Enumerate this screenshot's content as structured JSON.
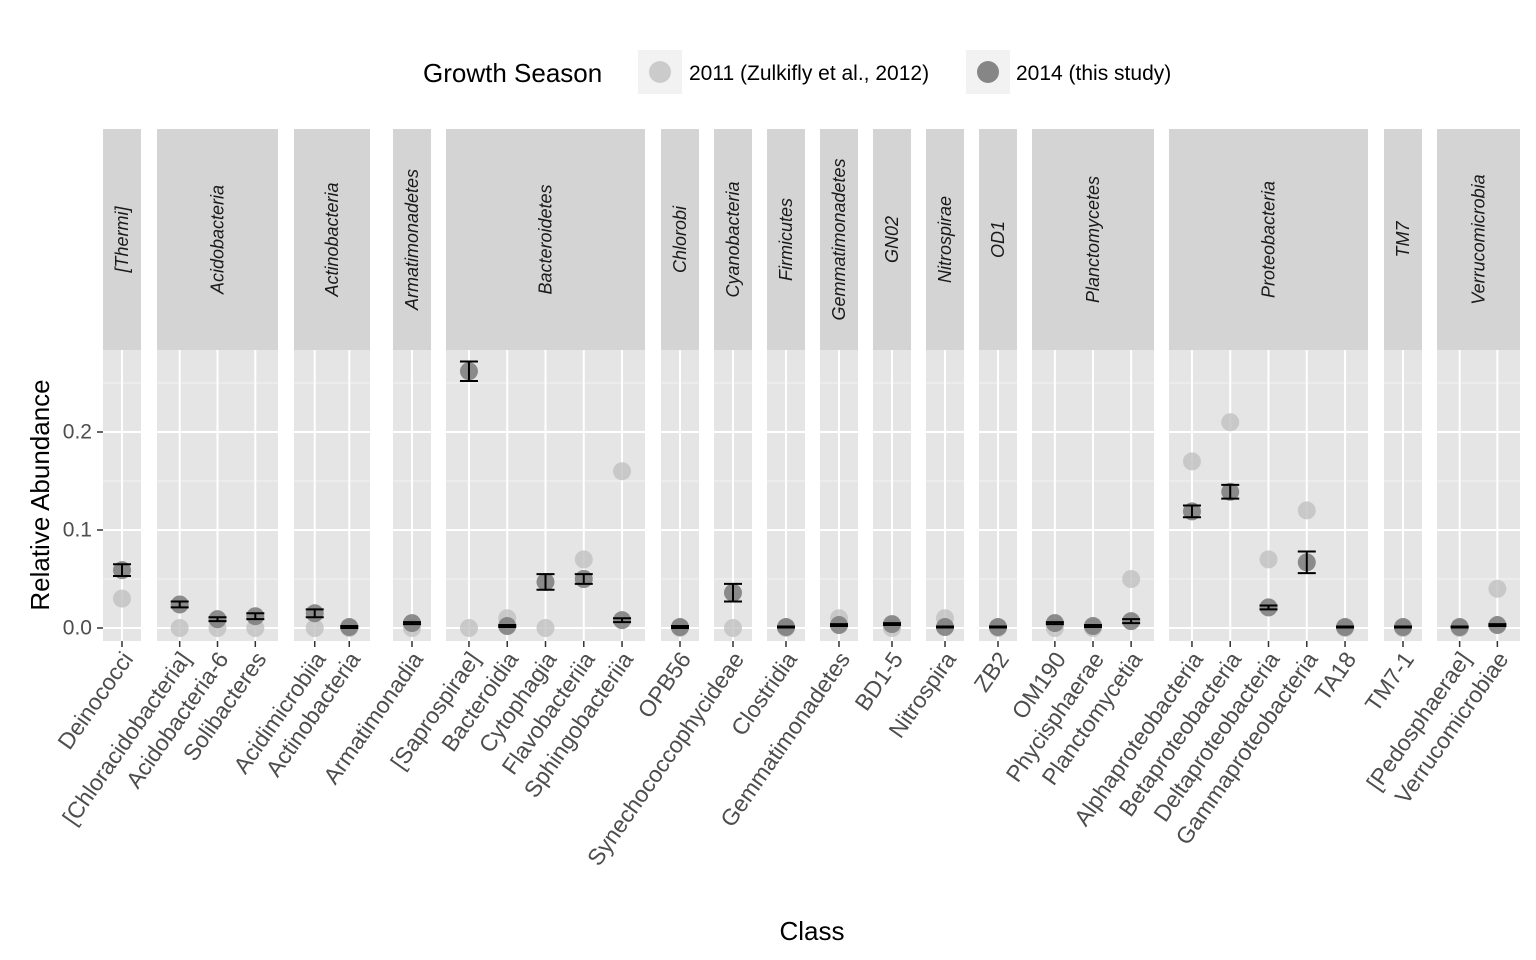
{
  "chart_data": {
    "type": "scatter",
    "xlabel": "Class",
    "ylabel": "Relative Abundance",
    "ylim": [
      -0.012,
      0.285
    ],
    "yticks": [
      0.0,
      0.1,
      0.2
    ],
    "ytick_labels": [
      "0.0",
      "0.1",
      "0.2"
    ],
    "grid": true,
    "legend": {
      "title": "Growth Season",
      "placement": "top",
      "entries": [
        {
          "label": "2011 (Zulkifly et al., 2012)",
          "color": "#bdbdbd"
        },
        {
          "label": "2014 (this study)",
          "color": "#7a7a7a"
        }
      ]
    },
    "colors": {
      "season_2011": "#bdbdbd",
      "season_2014": "#7a7a7a",
      "panel_bg": "#e5e5e5",
      "strip_bg": "#d4d4d4",
      "grid": "#ffffff",
      "error_bar": "#000000"
    },
    "facets": [
      {
        "phylum": "[Thermi]",
        "classes": [
          {
            "name": "Deinococci",
            "y2011": 0.03,
            "y2014": 0.059,
            "err": 0.006
          }
        ]
      },
      {
        "phylum": "Acidobacteria",
        "classes": [
          {
            "name": "[Chloracidobacteria]",
            "y2011": 0.0,
            "y2014": 0.024,
            "err": 0.003
          },
          {
            "name": "Acidobacteria-6",
            "y2011": 0.0,
            "y2014": 0.009,
            "err": 0.002
          },
          {
            "name": "Solibacteres",
            "y2011": 0.0,
            "y2014": 0.012,
            "err": 0.003
          }
        ]
      },
      {
        "phylum": "Actinobacteria",
        "classes": [
          {
            "name": "Acidimicrobiia",
            "y2011": 0.0,
            "y2014": 0.015,
            "err": 0.004
          },
          {
            "name": "Actinobacteria",
            "y2011": 0.0,
            "y2014": 0.001,
            "err": 0.001
          }
        ]
      },
      {
        "phylum": "Armatimonadetes",
        "classes": [
          {
            "name": "Armatimonadia",
            "y2011": 0.0,
            "y2014": 0.005,
            "err": 0.001
          }
        ]
      },
      {
        "phylum": "Bacteroidetes",
        "classes": [
          {
            "name": "[Saprospirae]",
            "y2011": 0.0,
            "y2014": 0.262,
            "err": 0.01
          },
          {
            "name": "Bacteroidia",
            "y2011": 0.01,
            "y2014": 0.002,
            "err": 0.001
          },
          {
            "name": "Cytophagia",
            "y2011": 0.0,
            "y2014": 0.047,
            "err": 0.008
          },
          {
            "name": "Flavobacteriia",
            "y2011": 0.07,
            "y2014": 0.05,
            "err": 0.005
          },
          {
            "name": "Sphingobacteriia",
            "y2011": 0.16,
            "y2014": 0.008,
            "err": 0.002
          }
        ]
      },
      {
        "phylum": "Chlorobi",
        "classes": [
          {
            "name": "OPB56",
            "y2011": 0.0,
            "y2014": 0.001,
            "err": 0.001
          }
        ]
      },
      {
        "phylum": "Cyanobacteria",
        "classes": [
          {
            "name": "Synechococcophycideae",
            "y2011": 0.0,
            "y2014": 0.036,
            "err": 0.009
          }
        ]
      },
      {
        "phylum": "Firmicutes",
        "classes": [
          {
            "name": "Clostridia",
            "y2011": 0.0,
            "y2014": 0.001,
            "err": 0.0005
          }
        ]
      },
      {
        "phylum": "Gemmatimonadetes",
        "classes": [
          {
            "name": "Gemmatimonadetes",
            "y2011": 0.01,
            "y2014": 0.003,
            "err": 0.001
          }
        ]
      },
      {
        "phylum": "GN02",
        "classes": [
          {
            "name": "BD1-5",
            "y2011": 0.0,
            "y2014": 0.004,
            "err": 0.001
          }
        ]
      },
      {
        "phylum": "Nitrospirae",
        "classes": [
          {
            "name": "Nitrospira",
            "y2011": 0.01,
            "y2014": 0.001,
            "err": 0.0005
          }
        ]
      },
      {
        "phylum": "OD1",
        "classes": [
          {
            "name": "ZB2",
            "y2011": 0.0,
            "y2014": 0.001,
            "err": 0.0005
          }
        ]
      },
      {
        "phylum": "Planctomycetes",
        "classes": [
          {
            "name": "OM190",
            "y2011": 0.0,
            "y2014": 0.005,
            "err": 0.001
          },
          {
            "name": "Phycisphaerae",
            "y2011": 0.0,
            "y2014": 0.002,
            "err": 0.001
          },
          {
            "name": "Planctomycetia",
            "y2011": 0.05,
            "y2014": 0.007,
            "err": 0.002
          }
        ]
      },
      {
        "phylum": "Proteobacteria",
        "classes": [
          {
            "name": "Alphaproteobacteria",
            "y2011": 0.17,
            "y2014": 0.119,
            "err": 0.006
          },
          {
            "name": "Betaproteobacteria",
            "y2011": 0.21,
            "y2014": 0.139,
            "err": 0.007
          },
          {
            "name": "Deltaproteobacteria",
            "y2011": 0.07,
            "y2014": 0.021,
            "err": 0.002
          },
          {
            "name": "Gammaproteobacteria",
            "y2011": 0.12,
            "y2014": 0.067,
            "err": 0.011
          },
          {
            "name": "TA18",
            "y2011": 0.0,
            "y2014": 0.001,
            "err": 0.0005
          }
        ]
      },
      {
        "phylum": "TM7",
        "classes": [
          {
            "name": "TM7-1",
            "y2011": 0.0,
            "y2014": 0.001,
            "err": 0.0005
          }
        ]
      },
      {
        "phylum": "Verrucomicrobia",
        "classes": [
          {
            "name": "[Pedosphaerae]",
            "y2011": 0.0,
            "y2014": 0.001,
            "err": 0.0005
          },
          {
            "name": "Verrucomicrobiae",
            "y2011": 0.04,
            "y2014": 0.003,
            "err": 0.001
          }
        ]
      }
    ]
  }
}
